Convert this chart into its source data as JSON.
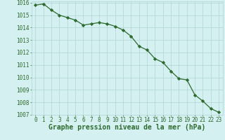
{
  "x": [
    0,
    1,
    2,
    3,
    4,
    5,
    6,
    7,
    8,
    9,
    10,
    11,
    12,
    13,
    14,
    15,
    16,
    17,
    18,
    19,
    20,
    21,
    22,
    23
  ],
  "y": [
    1015.8,
    1015.9,
    1015.4,
    1015.0,
    1014.8,
    1014.6,
    1014.2,
    1014.3,
    1014.4,
    1014.3,
    1014.1,
    1013.8,
    1013.3,
    1012.5,
    1012.2,
    1011.5,
    1011.2,
    1010.5,
    1009.9,
    1009.8,
    1008.6,
    1008.1,
    1007.5,
    1007.2
  ],
  "line_color": "#2d6a2d",
  "marker": "D",
  "marker_size": 2.2,
  "linewidth": 0.9,
  "bg_color": "#d4f0f0",
  "grid_color": "#b0d4d4",
  "xlabel": "Graphe pression niveau de la mer (hPa)",
  "xlabel_color": "#2d6a2d",
  "xlabel_fontsize": 7,
  "tick_color": "#2d6a2d",
  "tick_fontsize": 5.5,
  "ylim_min": 1007,
  "ylim_max": 1016,
  "xlim_min": -0.5,
  "xlim_max": 23.5,
  "yticks": [
    1007,
    1008,
    1009,
    1010,
    1011,
    1012,
    1013,
    1014,
    1015,
    1016
  ],
  "xticks": [
    0,
    1,
    2,
    3,
    4,
    5,
    6,
    7,
    8,
    9,
    10,
    11,
    12,
    13,
    14,
    15,
    16,
    17,
    18,
    19,
    20,
    21,
    22,
    23
  ]
}
